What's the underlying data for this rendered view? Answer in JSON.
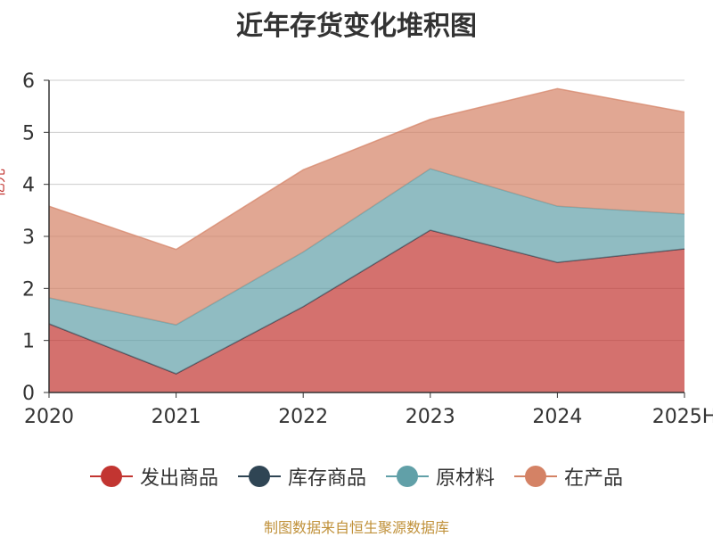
{
  "chart_data": {
    "type": "area",
    "stacked": true,
    "title": "近年存货变化堆积图",
    "ylabel": "亿元",
    "categories": [
      "2020",
      "2021",
      "2022",
      "2023",
      "2024",
      "2025H"
    ],
    "yticks": [
      "0",
      "1",
      "2",
      "3",
      "4",
      "5",
      "6"
    ],
    "ylim": [
      0,
      6
    ],
    "grid": true,
    "legend_position": "bottom",
    "series": [
      {
        "name": "发出商品",
        "color": "#c23531",
        "values": [
          1.32,
          0.36,
          1.65,
          3.12,
          2.5,
          2.76
        ]
      },
      {
        "name": "库存商品",
        "color": "#2f4554",
        "values": [
          0,
          0,
          0,
          0,
          0,
          0
        ]
      },
      {
        "name": "原材料",
        "color": "#61a0a8",
        "values": [
          0.5,
          0.94,
          1.05,
          1.18,
          1.08,
          0.67
        ]
      },
      {
        "name": "在产品",
        "color": "#d48265",
        "values": [
          1.76,
          1.45,
          1.58,
          0.95,
          2.26,
          1.96
        ]
      }
    ]
  },
  "source_note": "制图数据来自恒生聚源数据库"
}
